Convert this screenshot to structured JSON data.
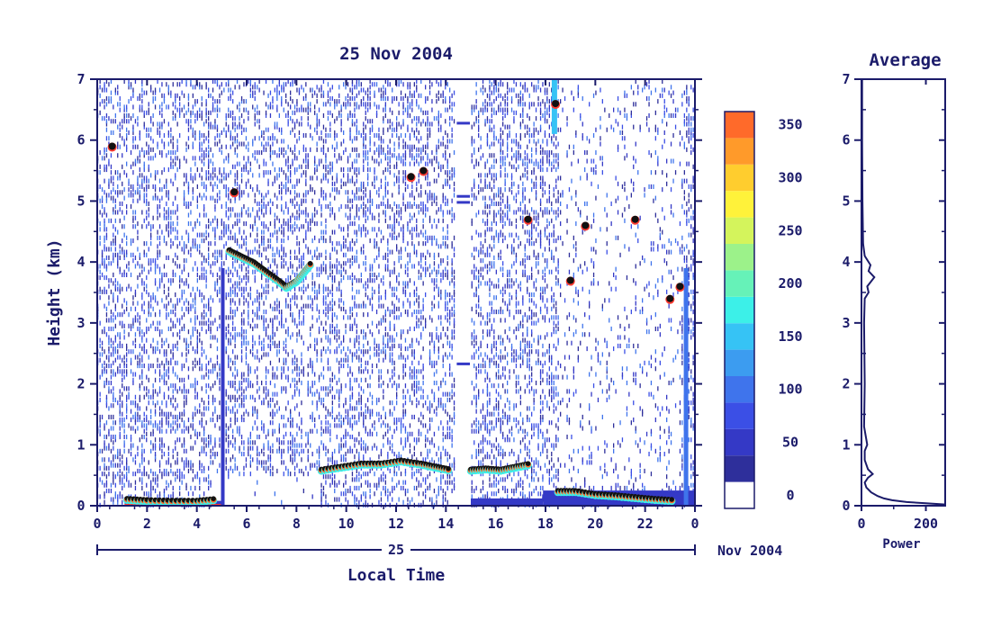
{
  "chart_data": [
    {
      "type": "heatmap",
      "title": "25 Nov 2004",
      "xlabel": "Local Time",
      "ylabel": "Height (km)",
      "x_tick_labels": [
        "0",
        "2",
        "4",
        "6",
        "8",
        "10",
        "12",
        "14",
        "16",
        "18",
        "20",
        "22",
        "0"
      ],
      "xlim": [
        0,
        24
      ],
      "y_tick_labels": [
        "0",
        "1",
        "2",
        "3",
        "4",
        "5",
        "6",
        "7"
      ],
      "ylim": [
        0,
        7
      ],
      "date_axis": {
        "day_label": "25",
        "month_label": "Nov 2004"
      },
      "colorbar": {
        "tick_labels": [
          "0",
          "50",
          "100",
          "150",
          "200",
          "250",
          "300",
          "350"
        ],
        "range": [
          0,
          375
        ],
        "levels": [
          {
            "value": 0,
            "color": "#ffffff"
          },
          {
            "value": 25,
            "color": "#2e2f9b"
          },
          {
            "value": 50,
            "color": "#3439c6"
          },
          {
            "value": 75,
            "color": "#3b4fe6"
          },
          {
            "value": 100,
            "color": "#3f74ec"
          },
          {
            "value": 125,
            "color": "#3c9cf0"
          },
          {
            "value": 150,
            "color": "#36c3f5"
          },
          {
            "value": 175,
            "color": "#3cf0e8"
          },
          {
            "value": 200,
            "color": "#66f2b8"
          },
          {
            "value": 225,
            "color": "#9cf28a"
          },
          {
            "value": 250,
            "color": "#d4f45c"
          },
          {
            "value": 275,
            "color": "#fff23a"
          },
          {
            "value": 300,
            "color": "#ffcd2e"
          },
          {
            "value": 325,
            "color": "#ff9a2a"
          },
          {
            "value": 350,
            "color": "#ff6a2a"
          },
          {
            "value": 375,
            "color": "#ff3a30"
          }
        ]
      },
      "data_gap_hours": [
        14.4,
        15.0
      ],
      "features": [
        {
          "kind": "layer",
          "points": [
            [
              5.3,
              4.2
            ],
            [
              5.8,
              4.1
            ],
            [
              6.3,
              4.0
            ],
            [
              6.8,
              3.85
            ],
            [
              7.3,
              3.7
            ],
            [
              7.6,
              3.6
            ],
            [
              8.0,
              3.7
            ],
            [
              8.3,
              3.85
            ],
            [
              8.6,
              4.0
            ]
          ]
        },
        {
          "kind": "layer",
          "points": [
            [
              9.0,
              0.6
            ],
            [
              9.8,
              0.65
            ],
            [
              10.6,
              0.7
            ],
            [
              11.4,
              0.7
            ],
            [
              12.2,
              0.75
            ],
            [
              13.0,
              0.7
            ],
            [
              13.6,
              0.65
            ],
            [
              14.2,
              0.6
            ]
          ]
        },
        {
          "kind": "layer",
          "points": [
            [
              15.0,
              0.6
            ],
            [
              15.6,
              0.62
            ],
            [
              16.2,
              0.6
            ],
            [
              16.8,
              0.65
            ],
            [
              17.4,
              0.7
            ]
          ]
        },
        {
          "kind": "layer",
          "points": [
            [
              18.5,
              0.25
            ],
            [
              19.2,
              0.25
            ],
            [
              20.0,
              0.2
            ],
            [
              20.8,
              0.18
            ],
            [
              21.6,
              0.15
            ],
            [
              22.4,
              0.12
            ],
            [
              23.2,
              0.1
            ]
          ]
        },
        {
          "kind": "layer",
          "points": [
            [
              1.2,
              0.12
            ],
            [
              2.0,
              0.1
            ],
            [
              3.0,
              0.09
            ],
            [
              4.0,
              0.09
            ],
            [
              4.8,
              0.12
            ]
          ]
        },
        {
          "kind": "spot",
          "points": [
            [
              0.6,
              5.9
            ],
            [
              5.5,
              5.15
            ],
            [
              12.6,
              5.4
            ],
            [
              13.1,
              5.5
            ],
            [
              17.3,
              4.7
            ],
            [
              19.0,
              3.7
            ],
            [
              19.6,
              4.6
            ],
            [
              21.6,
              4.7
            ],
            [
              23.0,
              3.4
            ],
            [
              23.4,
              3.6
            ],
            [
              18.4,
              6.6
            ]
          ]
        }
      ]
    },
    {
      "type": "line",
      "title": "Average",
      "xlabel": "Power",
      "ylabel": "",
      "xlim": [
        0,
        260
      ],
      "ylim": [
        0,
        7
      ],
      "x_tick_labels": [
        "0",
        "200"
      ],
      "y_tick_labels": [
        "0",
        "1",
        "2",
        "3",
        "4",
        "5",
        "6",
        "7"
      ],
      "x": [
        260,
        200,
        140,
        95,
        70,
        50,
        30,
        15,
        10,
        20,
        35,
        20,
        10,
        10,
        18,
        8,
        10,
        8,
        10,
        22,
        18,
        40,
        22,
        28,
        10,
        5,
        3,
        2,
        2
      ],
      "y": [
        0.02,
        0.04,
        0.06,
        0.09,
        0.12,
        0.16,
        0.22,
        0.3,
        0.38,
        0.46,
        0.52,
        0.6,
        0.75,
        0.9,
        1.0,
        1.3,
        2.0,
        3.0,
        3.4,
        3.5,
        3.6,
        3.75,
        3.85,
        3.95,
        4.1,
        4.3,
        5.0,
        6.0,
        7.0
      ]
    }
  ]
}
